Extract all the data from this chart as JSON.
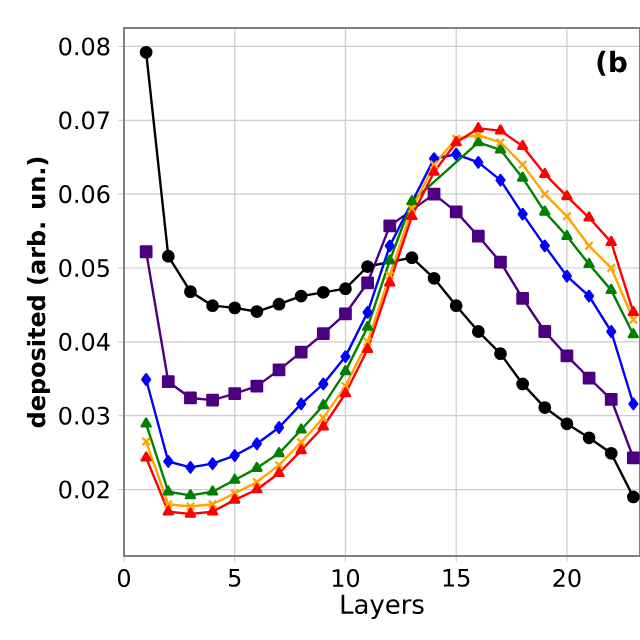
{
  "chart_data": {
    "type": "line",
    "xlabel": "Layers",
    "ylabel": "deposited (arb. un.)",
    "annotations": [
      "(b"
    ],
    "x": [
      1,
      2,
      3,
      4,
      5,
      6,
      7,
      8,
      9,
      10,
      11,
      12,
      13,
      14,
      15,
      16,
      17,
      18,
      19,
      20,
      21,
      22,
      23
    ],
    "series": [
      {
        "color": "#000000",
        "marker": "circle",
        "values": [
          0.0792,
          0.0516,
          0.0468,
          0.0449,
          0.0446,
          0.0441,
          0.0451,
          0.0462,
          0.0467,
          0.0472,
          0.0502,
          null,
          0.0514,
          0.0486,
          0.0449,
          0.0414,
          0.0384,
          0.0343,
          0.0311,
          0.0289,
          0.027,
          0.0249,
          0.019
        ]
      },
      {
        "color": "#4b0082",
        "marker": "square",
        "values": [
          0.0522,
          0.0346,
          0.0324,
          0.0321,
          0.033,
          0.034,
          0.0362,
          0.0386,
          0.0411,
          0.0438,
          0.048,
          0.0557,
          null,
          0.06,
          0.0576,
          0.0543,
          0.0508,
          0.0459,
          0.0414,
          0.0381,
          0.0351,
          0.0322,
          0.0243
        ]
      },
      {
        "color": "#0000ff",
        "marker": "diamond",
        "values": [
          0.0349,
          0.0238,
          0.023,
          0.0235,
          0.0246,
          0.0262,
          0.0284,
          0.0316,
          0.0343,
          0.038,
          0.044,
          0.053,
          null,
          0.0648,
          0.0654,
          0.0643,
          0.0619,
          0.0573,
          0.053,
          0.0489,
          0.0462,
          0.0414,
          0.0316
        ]
      },
      {
        "color": "#008000",
        "marker": "triangle",
        "values": [
          0.0289,
          0.0197,
          0.0192,
          0.0197,
          0.0213,
          0.0229,
          0.0249,
          0.0281,
          0.0314,
          0.036,
          0.042,
          0.051,
          0.059,
          null,
          null,
          0.067,
          0.066,
          0.0622,
          0.0576,
          0.0543,
          0.0505,
          0.047,
          0.041
        ]
      },
      {
        "color": "#ffa500",
        "marker": "cross",
        "values": [
          0.0265,
          0.018,
          0.0177,
          0.018,
          0.0195,
          0.021,
          0.0233,
          0.0264,
          0.0297,
          0.034,
          0.04,
          0.049,
          0.058,
          0.064,
          0.0675,
          0.068,
          0.067,
          0.064,
          0.06,
          0.057,
          0.053,
          0.05,
          0.043
        ]
      },
      {
        "color": "#ff0000",
        "marker": "triangle",
        "values": [
          0.0243,
          0.017,
          0.0167,
          0.017,
          0.0186,
          0.02,
          0.0222,
          0.0253,
          0.0285,
          0.033,
          0.039,
          0.048,
          0.057,
          0.063,
          0.067,
          0.0689,
          0.0686,
          0.0665,
          0.0627,
          0.0597,
          0.0568,
          0.0535,
          0.044
        ]
      }
    ],
    "xlim": [
      0,
      23.3
    ],
    "ylim": [
      0.011,
      0.0825
    ],
    "xticks": [
      0,
      5,
      10,
      15,
      20
    ],
    "yticks": [
      0.02,
      0.03,
      0.04,
      0.05,
      0.06,
      0.07,
      0.08
    ],
    "grid": true,
    "line_style": "solid"
  }
}
